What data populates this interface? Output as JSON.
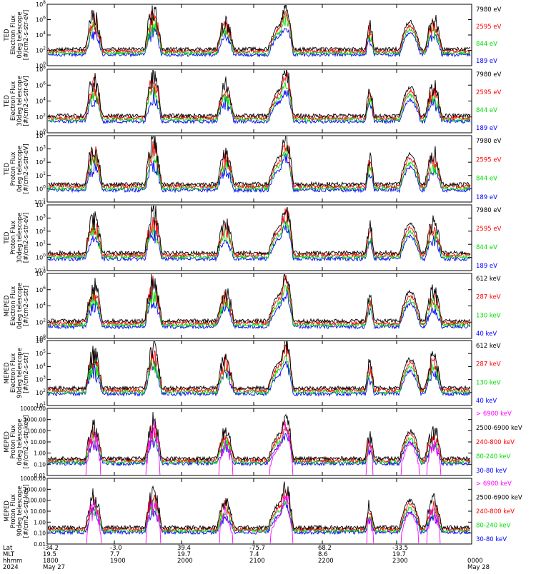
{
  "colors": {
    "black": "#000000",
    "blue": "#0000ff",
    "red": "#ff0000",
    "green": "#00dd00",
    "magenta": "#ff00ff"
  },
  "chart_data": [
    {
      "type": "line",
      "ylabel": [
        "TED",
        "Electron Flux",
        "0deg telescope",
        "[#/cm2-s-str-eV]"
      ],
      "yscale": "log",
      "yticks": [
        "10^0",
        "10^2",
        "10^4",
        "10^6",
        "10^8"
      ],
      "series": [
        {
          "name": "7980 eV",
          "color": "#000000"
        },
        {
          "name": "2595 eV",
          "color": "#ff0000"
        },
        {
          "name": "844 eV",
          "color": "#00dd00"
        },
        {
          "name": "189 eV",
          "color": "#0000ff"
        }
      ]
    },
    {
      "type": "line",
      "ylabel": [
        "TED",
        "Electron Flux",
        "30deg telescope",
        "[#/cm2-s-str-eV]"
      ],
      "yscale": "log",
      "yticks": [
        "10^0",
        "10^2",
        "10^4",
        "10^6",
        "10^8"
      ],
      "series": [
        {
          "name": "7980 eV",
          "color": "#000000"
        },
        {
          "name": "2595 eV",
          "color": "#ff0000"
        },
        {
          "name": "844 eV",
          "color": "#00dd00"
        },
        {
          "name": "189 eV",
          "color": "#0000ff"
        }
      ]
    },
    {
      "type": "line",
      "ylabel": [
        "TED",
        "Proton Flux",
        "0deg telescope",
        "[#/cm2-s-str-eV]"
      ],
      "yscale": "log",
      "yticks": [
        "10^-1",
        "10^0",
        "10^1",
        "10^2",
        "10^3",
        "10^4"
      ],
      "series": [
        {
          "name": "7980 eV",
          "color": "#000000"
        },
        {
          "name": "2595 eV",
          "color": "#ff0000"
        },
        {
          "name": "844 eV",
          "color": "#00dd00"
        },
        {
          "name": "189 eV",
          "color": "#0000ff"
        }
      ]
    },
    {
      "type": "line",
      "ylabel": [
        "TED",
        "Proton Flux",
        "30deg telescope",
        "[#/cm2-s-str-eV]"
      ],
      "yscale": "log",
      "yticks": [
        "10^-1",
        "10^0",
        "10^1",
        "10^2",
        "10^3",
        "10^4"
      ],
      "series": [
        {
          "name": "7980 eV",
          "color": "#000000"
        },
        {
          "name": "2595 eV",
          "color": "#ff0000"
        },
        {
          "name": "844 eV",
          "color": "#00dd00"
        },
        {
          "name": "189 eV",
          "color": "#0000ff"
        }
      ]
    },
    {
      "type": "line",
      "ylabel": [
        "MEPED",
        "Electron Flux",
        "0deg telescope",
        "[#/cm2-s-str]"
      ],
      "yscale": "log",
      "yticks": [
        "10^0",
        "10^2",
        "10^4",
        "10^6",
        "10^8"
      ],
      "series": [
        {
          "name": "612 keV",
          "color": "#000000"
        },
        {
          "name": "287 keV",
          "color": "#ff0000"
        },
        {
          "name": "130 keV",
          "color": "#00dd00"
        },
        {
          "name": "40 keV",
          "color": "#0000ff"
        }
      ]
    },
    {
      "type": "line",
      "ylabel": [
        "MEPED",
        "Electron Flux",
        "90deg telescope",
        "[#/cm2-s-str]"
      ],
      "yscale": "log",
      "yticks": [
        "10^1",
        "10^2",
        "10^3",
        "10^4",
        "10^5",
        "10^6"
      ],
      "series": [
        {
          "name": "612 keV",
          "color": "#000000"
        },
        {
          "name": "287 keV",
          "color": "#ff0000"
        },
        {
          "name": "130 keV",
          "color": "#00dd00"
        },
        {
          "name": "40 keV",
          "color": "#0000ff"
        }
      ]
    },
    {
      "type": "line",
      "ylabel": [
        "MEPED",
        "Proton Flux",
        "0deg telescope",
        "[#/cm2-s-str-keV]"
      ],
      "yscale": "log",
      "yticks": [
        "0.01",
        "0.10",
        "1.00",
        "10.00",
        "100.00",
        "1000.00",
        "10000.00"
      ],
      "series": [
        {
          "name": "> 6900 keV",
          "color": "#ff00ff"
        },
        {
          "name": "2500-6900 keV",
          "color": "#000000"
        },
        {
          "name": "240-800 keV",
          "color": "#ff0000"
        },
        {
          "name": "80-240 keV",
          "color": "#00dd00"
        },
        {
          "name": "30-80 keV",
          "color": "#0000ff"
        }
      ]
    },
    {
      "type": "line",
      "ylabel": [
        "MEPED",
        "Proton Flux",
        "90deg telescope",
        "[#/cm2-s-str-keV]"
      ],
      "yscale": "log",
      "yticks": [
        "0.01",
        "0.10",
        "1.00",
        "10.00",
        "100.00",
        "1000.00",
        "10000.00"
      ],
      "series": [
        {
          "name": "> 6900 keV",
          "color": "#ff00ff"
        },
        {
          "name": "2500-6900 keV",
          "color": "#000000"
        },
        {
          "name": "240-800 keV",
          "color": "#ff0000"
        },
        {
          "name": "80-240 keV",
          "color": "#00dd00"
        },
        {
          "name": "30-80 keV",
          "color": "#0000ff"
        }
      ]
    }
  ],
  "x_axis": {
    "row_labels": [
      "Lat",
      "MLT",
      "hhmm",
      "2024"
    ],
    "ticks": [
      {
        "lat": "-34.2",
        "mlt": "19.5",
        "hhmm": "1800",
        "date": "May 27"
      },
      {
        "lat": "-3.0",
        "mlt": "7.7",
        "hhmm": "1900",
        "date": ""
      },
      {
        "lat": "39.4",
        "mlt": "19.7",
        "hhmm": "2000",
        "date": ""
      },
      {
        "lat": "-75.7",
        "mlt": "7.4",
        "hhmm": "2100",
        "date": ""
      },
      {
        "lat": "68.2",
        "mlt": "8.6",
        "hhmm": "2200",
        "date": ""
      },
      {
        "lat": "-33.5",
        "mlt": "19.7",
        "hhmm": "2300",
        "date": ""
      },
      {
        "lat": "",
        "mlt": "",
        "hhmm": "0000",
        "date": "May 28"
      }
    ]
  }
}
